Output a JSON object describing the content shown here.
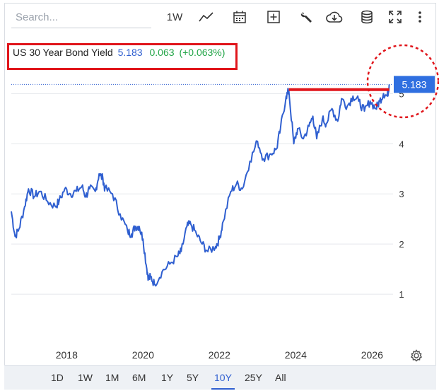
{
  "search": {
    "placeholder": "Search..."
  },
  "toolbar": {
    "interval_label": "1W",
    "icons": [
      "line-chart-icon",
      "calendar-icon",
      "add-indicator-icon",
      "wrench-icon",
      "cloud-download-icon",
      "database-icon",
      "fullscreen-icon",
      "more-icon"
    ]
  },
  "legend": {
    "symbol": "US 30 Year Bond Yield",
    "value": "5.183",
    "change": "0.063",
    "change_pct": "(+0.063%)"
  },
  "price_badge": {
    "value": "5.183",
    "color": "#2f6fe0"
  },
  "colors": {
    "line": "#2f5fd0",
    "annotation": "#e0151b",
    "up": "#22a547"
  },
  "range_buttons": [
    "1D",
    "1W",
    "1M",
    "6M",
    "1Y",
    "5Y",
    "10Y",
    "25Y",
    "All"
  ],
  "active_range": "10Y",
  "chart_data": {
    "type": "line",
    "title": "US 30 Year Bond Yield",
    "xlim": [
      2016.55,
      2026.55
    ],
    "ylim": [
      0,
      5.4
    ],
    "x_ticks": [
      "2018",
      "2020",
      "2022",
      "2024",
      "2026"
    ],
    "y_ticks": [
      "1",
      "2",
      "3",
      "4",
      "5"
    ],
    "grid": "horizontal",
    "series": [
      {
        "name": "US 30 Year Bond Yield",
        "x": [
          2016.55,
          2016.65,
          2016.75,
          2016.9,
          2017.0,
          2017.15,
          2017.3,
          2017.5,
          2017.7,
          2017.8,
          2017.95,
          2018.1,
          2018.25,
          2018.4,
          2018.5,
          2018.6,
          2018.75,
          2018.85,
          2018.95,
          2019.0,
          2019.2,
          2019.4,
          2019.6,
          2019.7,
          2019.8,
          2019.9,
          2020.0,
          2020.1,
          2020.15,
          2020.2,
          2020.3,
          2020.5,
          2020.7,
          2020.9,
          2021.0,
          2021.15,
          2021.25,
          2021.4,
          2021.55,
          2021.7,
          2021.9,
          2022.0,
          2022.1,
          2022.3,
          2022.45,
          2022.6,
          2022.8,
          2023.0,
          2023.15,
          2023.35,
          2023.5,
          2023.6,
          2023.75,
          2023.82,
          2023.95,
          2024.05,
          2024.2,
          2024.35,
          2024.45,
          2024.55,
          2024.7,
          2024.8,
          2024.95,
          2025.1,
          2025.2,
          2025.35,
          2025.5,
          2025.65,
          2025.8,
          2025.95,
          2026.1,
          2026.2,
          2026.3,
          2026.4,
          2026.45
        ],
        "values": [
          2.65,
          2.15,
          2.3,
          2.75,
          3.1,
          2.95,
          3.05,
          2.85,
          2.75,
          2.85,
          3.1,
          3.0,
          3.05,
          3.15,
          2.95,
          3.1,
          3.05,
          3.4,
          3.3,
          3.1,
          3.0,
          2.6,
          2.25,
          2.2,
          2.35,
          2.35,
          2.1,
          1.5,
          1.3,
          1.35,
          1.2,
          1.45,
          1.6,
          1.75,
          1.85,
          2.35,
          2.4,
          2.2,
          2.0,
          1.85,
          1.95,
          2.1,
          2.45,
          3.05,
          3.2,
          3.1,
          3.65,
          4.05,
          3.7,
          3.8,
          3.9,
          4.3,
          4.95,
          5.05,
          4.0,
          4.3,
          4.1,
          4.35,
          4.55,
          4.1,
          4.5,
          4.4,
          4.7,
          4.45,
          4.9,
          4.75,
          4.95,
          4.85,
          4.65,
          4.85,
          4.7,
          4.85,
          5.0,
          4.95,
          5.183
        ]
      }
    ],
    "horizontal_line": {
      "y": 5.08,
      "x_start": 2023.82,
      "x_end": 2026.45
    }
  }
}
